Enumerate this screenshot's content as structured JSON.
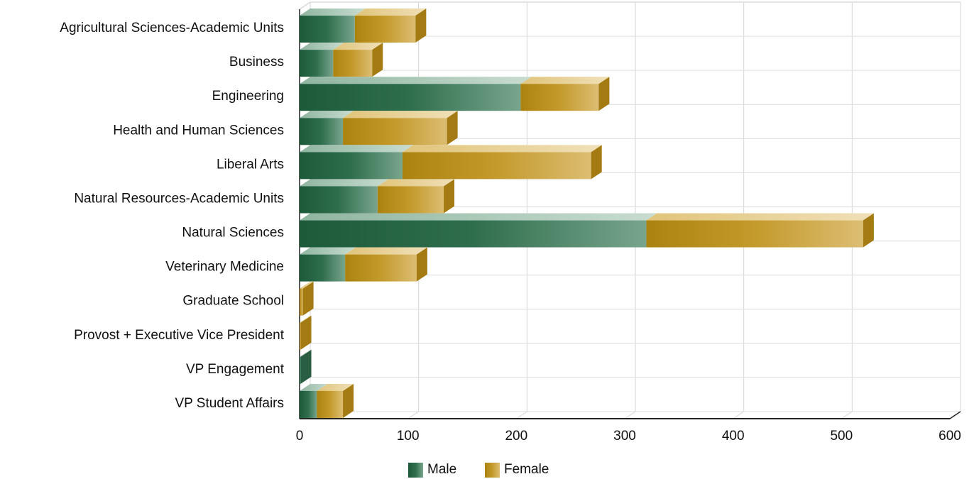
{
  "chart_data": {
    "type": "bar",
    "orientation": "horizontal",
    "stacked": true,
    "style_3d": true,
    "categories": [
      "Agricultural Sciences-Academic Units",
      "Business",
      "Engineering",
      "Health and Human Sciences",
      "Liberal Arts",
      "Natural Resources-Academic Units",
      "Natural Sciences",
      "Veterinary Medicine",
      "Graduate School",
      "Provost + Executive Vice President",
      "VP Engagement",
      "VP Student Affairs"
    ],
    "series": [
      {
        "name": "Male",
        "values": [
          51,
          31,
          204,
          40,
          95,
          72,
          320,
          42,
          0,
          0,
          1,
          16
        ]
      },
      {
        "name": "Female",
        "values": [
          56,
          36,
          72,
          96,
          174,
          61,
          200,
          66,
          3,
          1,
          0,
          24
        ]
      }
    ],
    "xlim": [
      0,
      600
    ],
    "xticks": [
      0,
      100,
      200,
      300,
      400,
      500,
      600
    ],
    "grid": true,
    "legend": "bottom-center",
    "colors": {
      "Male": "#2e6e4e",
      "Female": "#c49a2c"
    }
  }
}
